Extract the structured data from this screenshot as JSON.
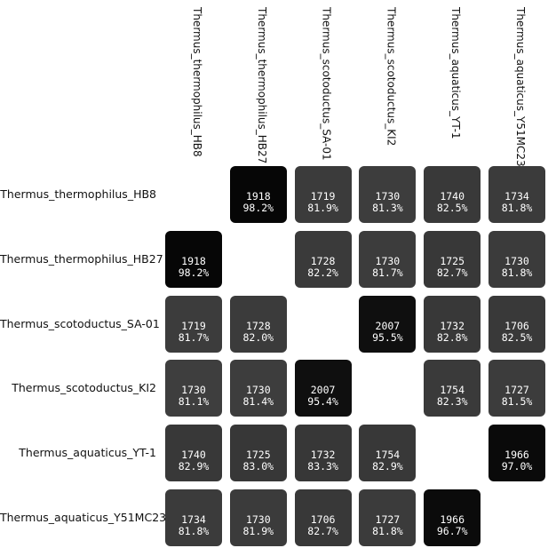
{
  "chart_data": {
    "type": "heatmap",
    "row_labels": [
      "Thermus_thermophilus_HB8",
      "Thermus_thermophilus_HB27",
      "Thermus_scotoductus_SA-01",
      "Thermus_scotoductus_KI2",
      "Thermus_aquaticus_YT-1",
      "Thermus_aquaticus_Y51MC23"
    ],
    "col_labels": [
      "Thermus_thermophilus_HB8",
      "Thermus_thermophilus_HB27",
      "Thermus_scotoductus_SA-01",
      "Thermus_scotoductus_KI2",
      "Thermus_aquaticus_YT-1",
      "Thermus_aquaticus_Y51MC23"
    ],
    "cells": [
      [
        null,
        {
          "count": "1918",
          "pct": "98.2%"
        },
        {
          "count": "1719",
          "pct": "81.9%"
        },
        {
          "count": "1730",
          "pct": "81.3%"
        },
        {
          "count": "1740",
          "pct": "82.5%"
        },
        {
          "count": "1734",
          "pct": "81.8%"
        }
      ],
      [
        {
          "count": "1918",
          "pct": "98.2%"
        },
        null,
        {
          "count": "1728",
          "pct": "82.2%"
        },
        {
          "count": "1730",
          "pct": "81.7%"
        },
        {
          "count": "1725",
          "pct": "82.7%"
        },
        {
          "count": "1730",
          "pct": "81.8%"
        }
      ],
      [
        {
          "count": "1719",
          "pct": "81.7%"
        },
        {
          "count": "1728",
          "pct": "82.0%"
        },
        null,
        {
          "count": "2007",
          "pct": "95.5%"
        },
        {
          "count": "1732",
          "pct": "82.8%"
        },
        {
          "count": "1706",
          "pct": "82.5%"
        }
      ],
      [
        {
          "count": "1730",
          "pct": "81.1%"
        },
        {
          "count": "1730",
          "pct": "81.4%"
        },
        {
          "count": "2007",
          "pct": "95.4%"
        },
        null,
        {
          "count": "1754",
          "pct": "82.3%"
        },
        {
          "count": "1727",
          "pct": "81.5%"
        }
      ],
      [
        {
          "count": "1740",
          "pct": "82.9%"
        },
        {
          "count": "1725",
          "pct": "83.0%"
        },
        {
          "count": "1732",
          "pct": "83.3%"
        },
        {
          "count": "1754",
          "pct": "82.9%"
        },
        null,
        {
          "count": "1966",
          "pct": "97.0%"
        }
      ],
      [
        {
          "count": "1734",
          "pct": "81.8%"
        },
        {
          "count": "1730",
          "pct": "81.9%"
        },
        {
          "count": "1706",
          "pct": "82.7%"
        },
        {
          "count": "1727",
          "pct": "81.8%"
        },
        {
          "count": "1966",
          "pct": "96.7%"
        },
        null
      ]
    ],
    "colors": {
      "high": "#050505",
      "low": "#3e3e3e"
    },
    "grid": false,
    "legend": "none"
  }
}
